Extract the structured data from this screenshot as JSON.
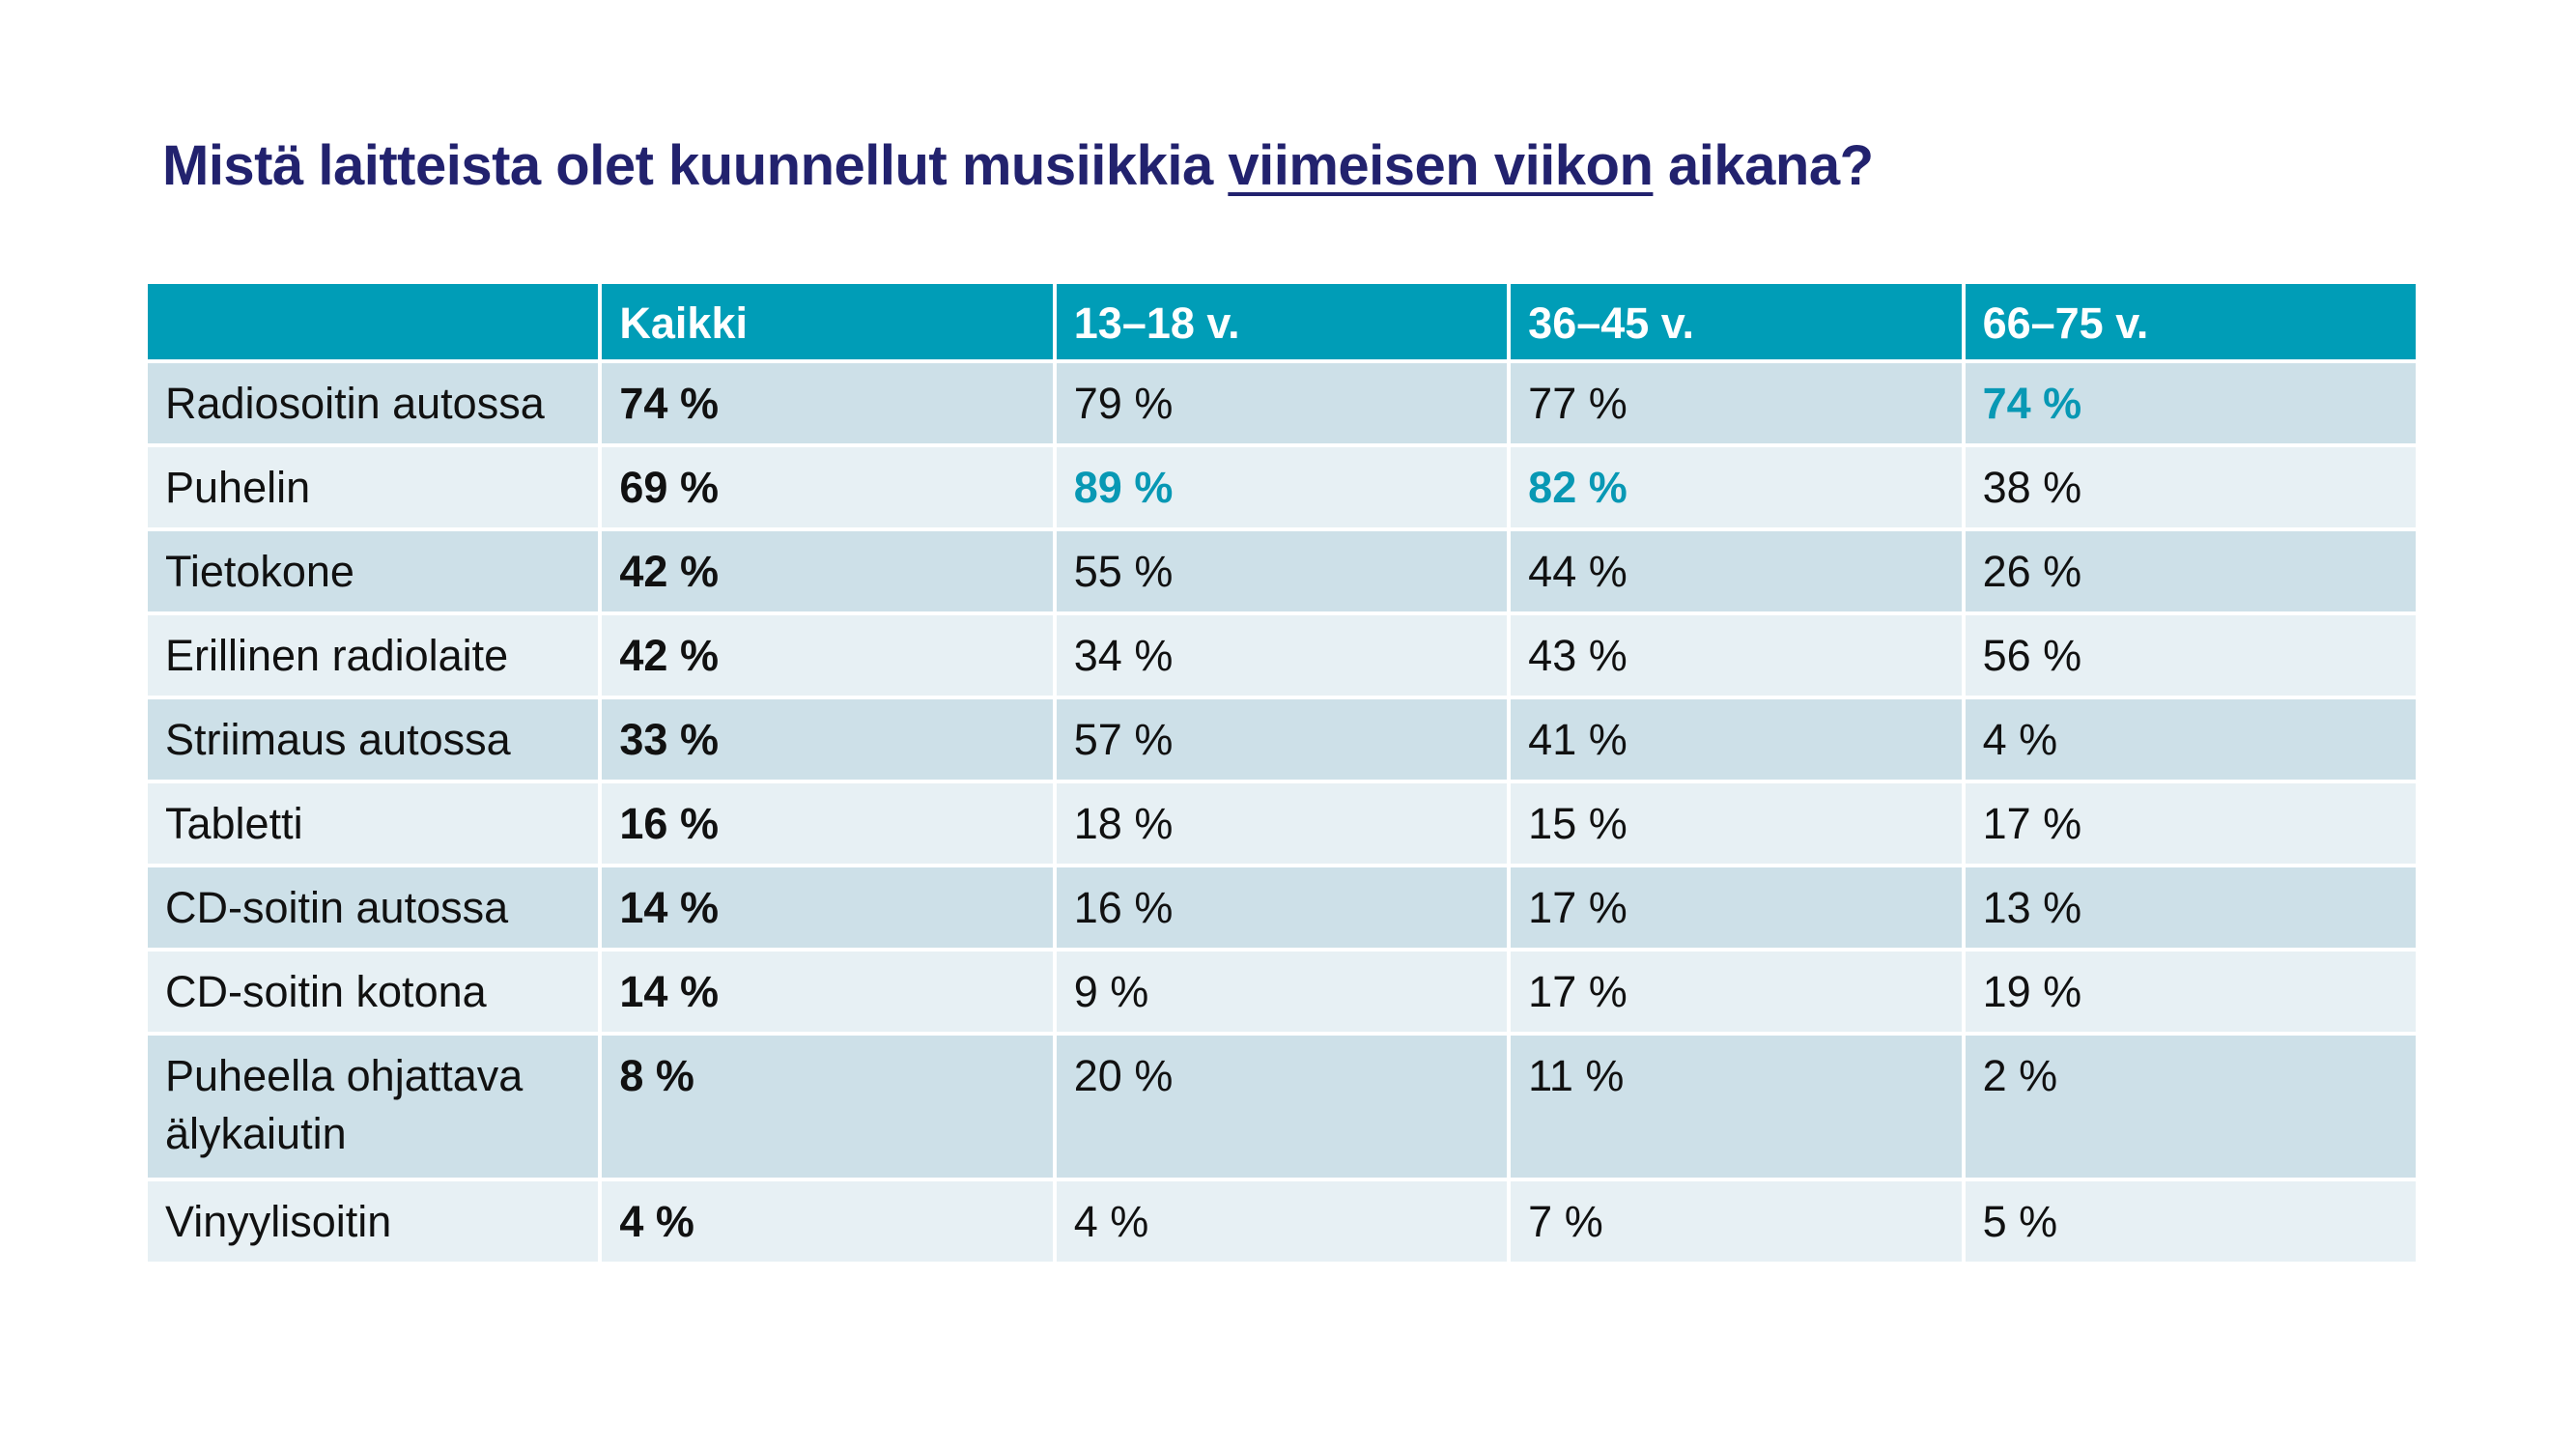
{
  "title": {
    "before": "Mistä laitteista olet kuunnellut musiikkia ",
    "underlined": "viimeisen viikon",
    "after": " aikana?"
  },
  "chart_data": {
    "type": "table",
    "columns": [
      "",
      "Kaikki",
      "13–18 v.",
      "36–45 v.",
      "66–75 v."
    ],
    "rows": [
      {
        "label": "Radiosoitin autossa",
        "values": [
          "74 %",
          "79 %",
          "77 %",
          "74 %"
        ],
        "highlight": [
          false,
          false,
          false,
          true
        ]
      },
      {
        "label": "Puhelin",
        "values": [
          "69 %",
          "89 %",
          "82 %",
          "38 %"
        ],
        "highlight": [
          false,
          true,
          true,
          false
        ]
      },
      {
        "label": "Tietokone",
        "values": [
          "42 %",
          "55 %",
          "44 %",
          "26 %"
        ],
        "highlight": [
          false,
          false,
          false,
          false
        ]
      },
      {
        "label": "Erillinen radiolaite",
        "values": [
          "42 %",
          "34 %",
          "43 %",
          "56 %"
        ],
        "highlight": [
          false,
          false,
          false,
          false
        ]
      },
      {
        "label": "Striimaus autossa",
        "values": [
          "33 %",
          "57 %",
          "41 %",
          "4 %"
        ],
        "highlight": [
          false,
          false,
          false,
          false
        ]
      },
      {
        "label": "Tabletti",
        "values": [
          "16 %",
          "18 %",
          "15 %",
          "17 %"
        ],
        "highlight": [
          false,
          false,
          false,
          false
        ]
      },
      {
        "label": "CD-soitin autossa",
        "values": [
          "14 %",
          "16 %",
          "17 %",
          "13 %"
        ],
        "highlight": [
          false,
          false,
          false,
          false
        ]
      },
      {
        "label": "CD-soitin kotona",
        "values": [
          "14 %",
          "9 %",
          "17 %",
          "19 %"
        ],
        "highlight": [
          false,
          false,
          false,
          false
        ]
      },
      {
        "label": "Puheella ohjattava älykaiutin",
        "values": [
          "8 %",
          "20 %",
          "11 %",
          "2 %"
        ],
        "highlight": [
          false,
          false,
          false,
          false
        ]
      },
      {
        "label": "Vinyylisoitin",
        "values": [
          "4 %",
          "4 %",
          "7 %",
          "5 %"
        ],
        "highlight": [
          false,
          false,
          false,
          false
        ]
      }
    ]
  },
  "colors": {
    "title": "#22226e",
    "header_bg": "#009db7",
    "row_dark": "#cde0e8",
    "row_light": "#e7f0f4",
    "highlight": "#0898b4"
  }
}
